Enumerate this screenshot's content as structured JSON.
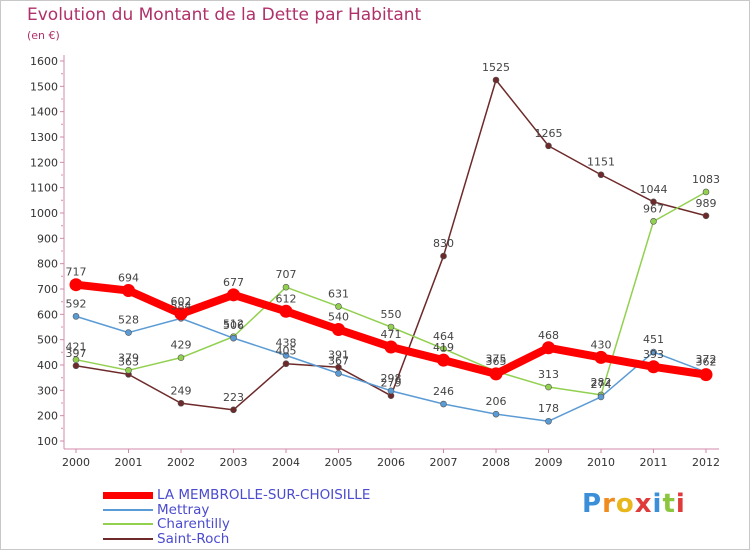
{
  "header": {
    "title": "Evolution du Montant de la Dette par Habitant",
    "subtitle": "(en €)"
  },
  "logo": {
    "text": "Proxiti",
    "colors": [
      "#3a8fd8",
      "#f08c1e",
      "#e8b71c",
      "#e03a3a",
      "#3a8fd8",
      "#8cc63f",
      "#e03a3a"
    ]
  },
  "chart_data": {
    "type": "line",
    "x": [
      "2000",
      "2001",
      "2002",
      "2003",
      "2004",
      "2005",
      "2006",
      "2007",
      "2008",
      "2009",
      "2010",
      "2011",
      "2012"
    ],
    "ylim": [
      100,
      1600
    ],
    "yticks": [
      100,
      200,
      300,
      400,
      500,
      600,
      700,
      800,
      900,
      1000,
      1100,
      1200,
      1300,
      1400,
      1500,
      1600
    ],
    "grid": false,
    "legend_position": "bottom-left",
    "series": [
      {
        "name": "LA MEMBROLLE-SUR-CHOISILLE",
        "color": "#ff0000",
        "values": [
          717,
          694,
          602,
          677,
          612,
          540,
          471,
          419,
          365,
          468,
          430,
          393,
          362
        ]
      },
      {
        "name": "Mettray",
        "color": "#5b9bd5",
        "values": [
          592,
          528,
          584,
          506,
          438,
          367,
          298,
          246,
          206,
          178,
          274,
          451,
          372
        ]
      },
      {
        "name": "Charentilly",
        "color": "#92d050",
        "values": [
          421,
          379,
          429,
          512,
          707,
          631,
          550,
          464,
          375,
          313,
          282,
          967,
          1083
        ]
      },
      {
        "name": "Saint-Roch",
        "color": "#6e2a2a",
        "values": [
          397,
          363,
          249,
          223,
          405,
          391,
          279,
          830,
          1525,
          1265,
          1151,
          1044,
          989
        ]
      }
    ]
  }
}
